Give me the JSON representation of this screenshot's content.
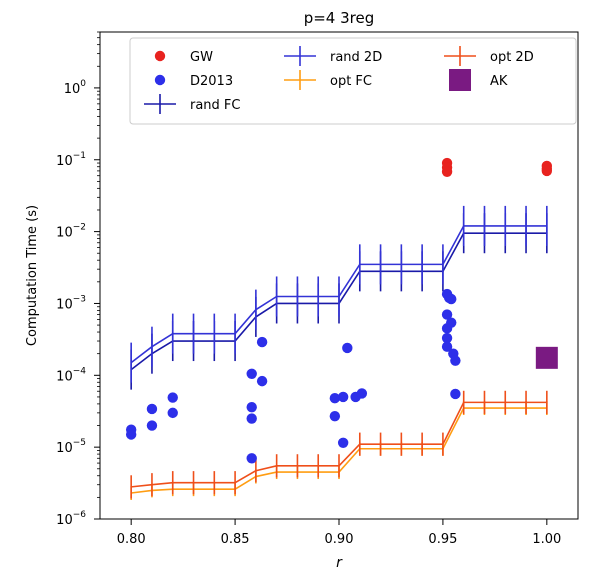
{
  "chart_data": {
    "type": "scatter",
    "title": "p=4 3reg",
    "xlabel": "r",
    "ylabel": "Computation Time (s)",
    "xlim": [
      0.785,
      1.015
    ],
    "ylim": [
      1e-06,
      6
    ],
    "yscale": "log",
    "grid": false,
    "legend_position": "top",
    "x_ticks": [
      {
        "value": 0.8,
        "label": "0.80"
      },
      {
        "value": 0.85,
        "label": "0.85"
      },
      {
        "value": 0.9,
        "label": "0.90"
      },
      {
        "value": 0.95,
        "label": "0.95"
      },
      {
        "value": 1.0,
        "label": "1.00"
      }
    ],
    "y_ticks": [
      {
        "value": 1e-06,
        "base": "10",
        "exp": "−6"
      },
      {
        "value": 1e-05,
        "base": "10",
        "exp": "−5"
      },
      {
        "value": 0.0001,
        "base": "10",
        "exp": "−4"
      },
      {
        "value": 0.001,
        "base": "10",
        "exp": "−3"
      },
      {
        "value": 0.01,
        "base": "10",
        "exp": "−2"
      },
      {
        "value": 0.1,
        "base": "10",
        "exp": "−1"
      },
      {
        "value": 1,
        "base": "10",
        "exp": "0"
      }
    ],
    "series": [
      {
        "name": "GW",
        "kind": "scatter",
        "marker": "circle",
        "color": "#e8231f",
        "x": [
          0.952,
          0.952,
          0.952,
          1.0,
          1.0,
          1.0
        ],
        "y": [
          0.09,
          0.078,
          0.068,
          0.082,
          0.075,
          0.07
        ]
      },
      {
        "name": "D2013",
        "kind": "scatter",
        "marker": "circle",
        "color": "#2d2fe9",
        "x": [
          0.8,
          0.8,
          0.81,
          0.81,
          0.82,
          0.82,
          0.858,
          0.858,
          0.858,
          0.858,
          0.863,
          0.863,
          0.898,
          0.898,
          0.902,
          0.902,
          0.904,
          0.908,
          0.911,
          0.952,
          0.952,
          0.952,
          0.952,
          0.952,
          0.953,
          0.954,
          0.954,
          0.955,
          0.956,
          0.956
        ],
        "y": [
          1.75e-05,
          1.5e-05,
          3.4e-05,
          2e-05,
          4.9e-05,
          3e-05,
          0.000105,
          3.6e-05,
          2.5e-05,
          7e-06,
          0.00029,
          8.3e-05,
          4.8e-05,
          2.7e-05,
          5e-05,
          1.15e-05,
          0.00024,
          5e-05,
          5.6e-05,
          0.00135,
          0.0007,
          0.00045,
          0.00033,
          0.00025,
          0.0012,
          0.00115,
          0.00054,
          0.0002,
          0.00016,
          5.5e-05
        ]
      },
      {
        "name": "rand FC",
        "kind": "errorline",
        "color": "#1a1aa8",
        "x": [
          0.8,
          0.81,
          0.82,
          0.83,
          0.84,
          0.85,
          0.86,
          0.87,
          0.88,
          0.89,
          0.9,
          0.91,
          0.92,
          0.93,
          0.94,
          0.95,
          0.96,
          0.97,
          0.98,
          0.99,
          1.0
        ],
        "y": [
          0.00012,
          0.0002,
          0.0003,
          0.0003,
          0.0003,
          0.0003,
          0.00065,
          0.001,
          0.001,
          0.001,
          0.001,
          0.0028,
          0.0028,
          0.0028,
          0.0028,
          0.0028,
          0.0095,
          0.0095,
          0.0095,
          0.0095,
          0.0095
        ],
        "err_factor": 1.9
      },
      {
        "name": "rand 2D",
        "kind": "errorline",
        "color": "#3333d6",
        "x": [
          0.8,
          0.81,
          0.82,
          0.83,
          0.84,
          0.85,
          0.86,
          0.87,
          0.88,
          0.89,
          0.9,
          0.91,
          0.92,
          0.93,
          0.94,
          0.95,
          0.96,
          0.97,
          0.98,
          0.99,
          1.0
        ],
        "y": [
          0.00015,
          0.00025,
          0.00038,
          0.00038,
          0.00038,
          0.00038,
          0.00082,
          0.00125,
          0.00125,
          0.00125,
          0.00125,
          0.0035,
          0.0035,
          0.0035,
          0.0035,
          0.0035,
          0.012,
          0.012,
          0.012,
          0.012,
          0.012
        ],
        "err_factor": 1.9
      },
      {
        "name": "opt FC",
        "kind": "errorline",
        "color": "#ff9d12",
        "x": [
          0.8,
          0.81,
          0.82,
          0.83,
          0.84,
          0.85,
          0.86,
          0.87,
          0.88,
          0.89,
          0.9,
          0.91,
          0.92,
          0.93,
          0.94,
          0.95,
          0.96,
          0.97,
          0.98,
          0.99,
          1.0
        ],
        "y": [
          2.3e-06,
          2.5e-06,
          2.6e-06,
          2.6e-06,
          2.6e-06,
          2.6e-06,
          3.9e-06,
          4.5e-06,
          4.5e-06,
          4.5e-06,
          4.5e-06,
          9.5e-06,
          9.5e-06,
          9.5e-06,
          9.5e-06,
          9.5e-06,
          3.5e-05,
          3.5e-05,
          3.5e-05,
          3.5e-05,
          3.5e-05
        ],
        "err_factor": 1.25
      },
      {
        "name": "opt 2D",
        "kind": "errorline",
        "color": "#ef4f1a",
        "x": [
          0.8,
          0.81,
          0.82,
          0.83,
          0.84,
          0.85,
          0.86,
          0.87,
          0.88,
          0.89,
          0.9,
          0.91,
          0.92,
          0.93,
          0.94,
          0.95,
          0.96,
          0.97,
          0.98,
          0.99,
          1.0
        ],
        "y": [
          2.8e-06,
          3e-06,
          3.2e-06,
          3.2e-06,
          3.2e-06,
          3.2e-06,
          4.7e-06,
          5.5e-06,
          5.5e-06,
          5.5e-06,
          5.5e-06,
          1.1e-05,
          1.1e-05,
          1.1e-05,
          1.1e-05,
          1.1e-05,
          4.2e-05,
          4.2e-05,
          4.2e-05,
          4.2e-05,
          4.2e-05
        ],
        "err_factor": 1.45
      },
      {
        "name": "AK",
        "kind": "scatter",
        "marker": "square",
        "color": "#7a1a82",
        "x": [
          1.0
        ],
        "y": [
          0.000175
        ]
      }
    ],
    "legend": [
      {
        "name": "GW",
        "marker": "circle",
        "color": "#e8231f"
      },
      {
        "name": "rand 2D",
        "marker": "errorline",
        "color": "#3333d6"
      },
      {
        "name": "opt 2D",
        "marker": "errorline",
        "color": "#ef4f1a"
      },
      {
        "name": "D2013",
        "marker": "circle",
        "color": "#2d2fe9"
      },
      {
        "name": "opt FC",
        "marker": "errorline",
        "color": "#ff9d12"
      },
      {
        "name": "AK",
        "marker": "square",
        "color": "#7a1a82"
      },
      {
        "name": "rand FC",
        "marker": "errorline",
        "color": "#1a1aa8"
      }
    ]
  }
}
